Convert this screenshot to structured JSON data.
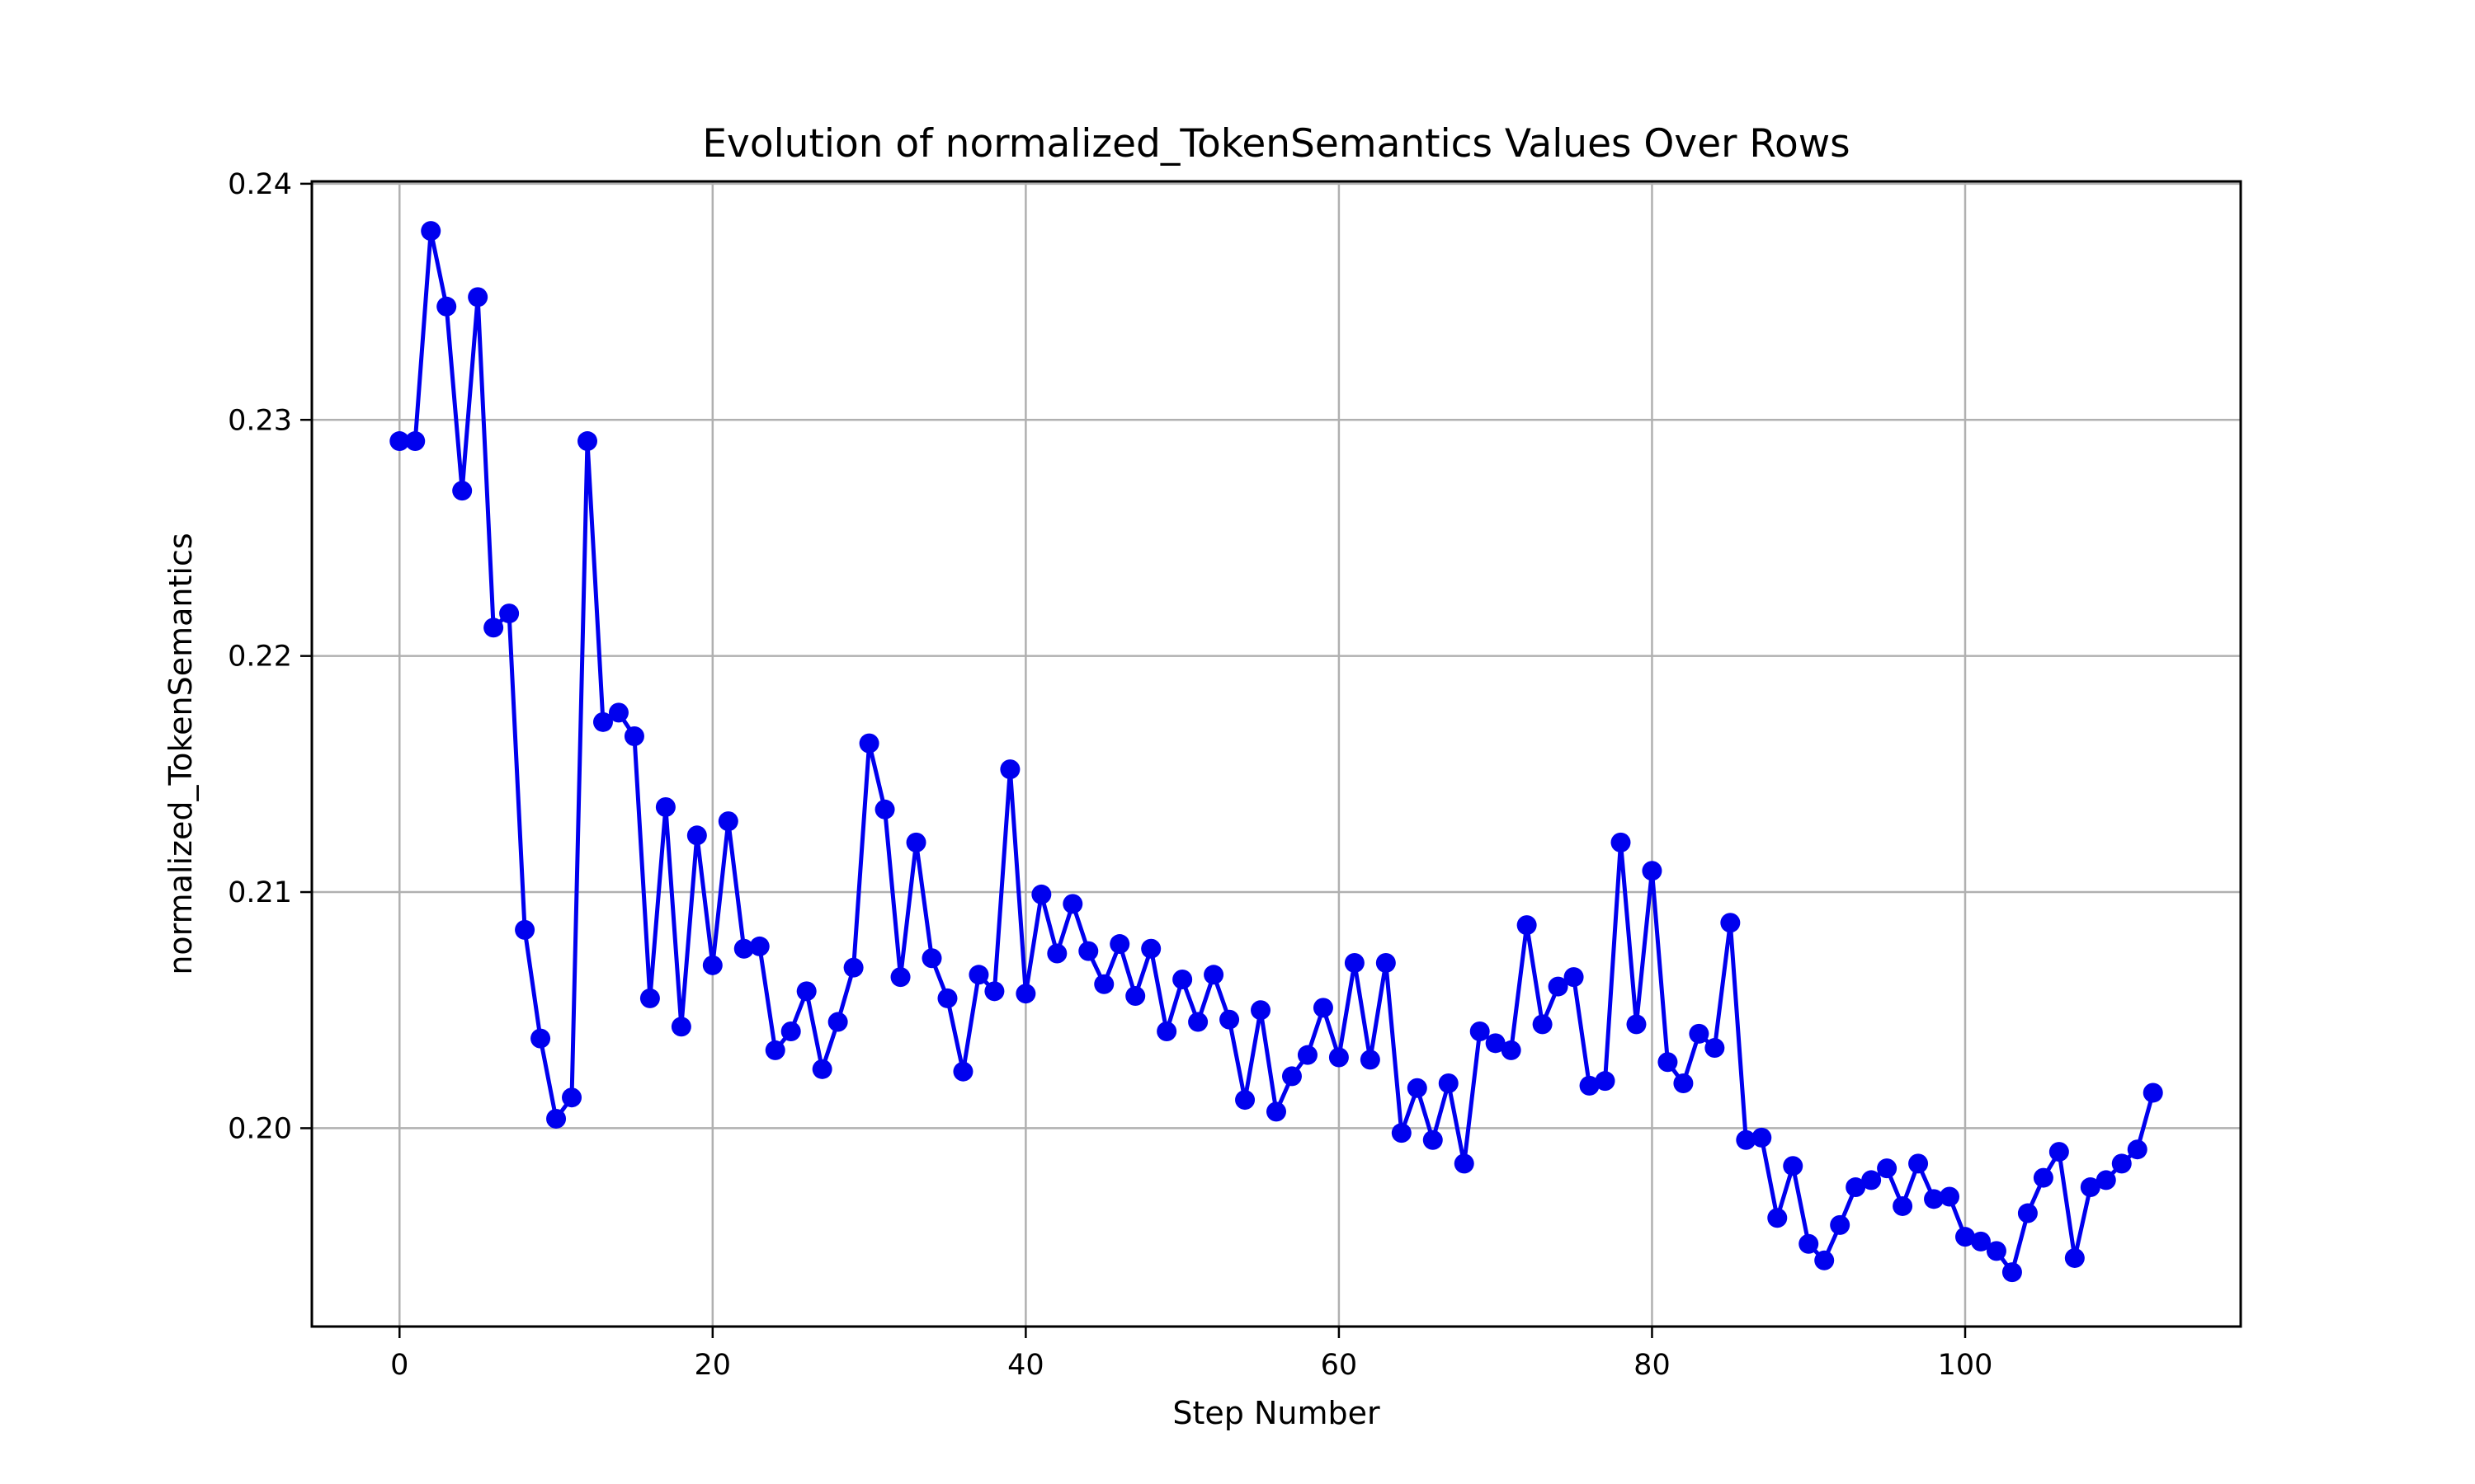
{
  "chart_data": {
    "type": "line",
    "title": "Evolution of normalized_TokenSemantics Values Over Rows",
    "xlabel": "Step Number",
    "ylabel": "normalized_TokenSemantics",
    "xlim": [
      -5.6,
      117.6
    ],
    "ylim": [
      0.1916,
      0.2401
    ],
    "xticks": [
      0,
      20,
      40,
      60,
      80,
      100
    ],
    "xtick_labels": [
      "0",
      "20",
      "40",
      "60",
      "80",
      "100"
    ],
    "yticks": [
      0.2,
      0.21,
      0.22,
      0.23,
      0.24
    ],
    "ytick_labels": [
      "0.20",
      "0.21",
      "0.22",
      "0.23",
      "0.24"
    ],
    "grid": true,
    "legend": "none",
    "series": [
      {
        "color": "#0000ee",
        "marker": "circle",
        "x": [
          0,
          1,
          2,
          3,
          4,
          5,
          6,
          7,
          8,
          9,
          10,
          11,
          12,
          13,
          14,
          15,
          16,
          17,
          18,
          19,
          20,
          21,
          22,
          23,
          24,
          25,
          26,
          27,
          28,
          29,
          30,
          31,
          32,
          33,
          34,
          35,
          36,
          37,
          38,
          39,
          40,
          41,
          42,
          43,
          44,
          45,
          46,
          47,
          48,
          49,
          50,
          51,
          52,
          53,
          54,
          55,
          56,
          57,
          58,
          59,
          60,
          61,
          62,
          63,
          64,
          65,
          66,
          67,
          68,
          69,
          70,
          71,
          72,
          73,
          74,
          75,
          76,
          77,
          78,
          79,
          80,
          81,
          82,
          83,
          84,
          85,
          86,
          87,
          88,
          89,
          90,
          91,
          92,
          93,
          94,
          95,
          96,
          97,
          98,
          99,
          100,
          101,
          102,
          103,
          104,
          105,
          106,
          107,
          108,
          109,
          110,
          111,
          112
        ],
        "values": [
          0.2291,
          0.2291,
          0.238,
          0.2348,
          0.227,
          0.2352,
          0.2212,
          0.2218,
          0.2084,
          0.2038,
          0.2004,
          0.2013,
          0.2291,
          0.2172,
          0.2176,
          0.2166,
          0.2055,
          0.2136,
          0.2043,
          0.2124,
          0.2069,
          0.213,
          0.2076,
          0.2077,
          0.2033,
          0.2041,
          0.2058,
          0.2025,
          0.2045,
          0.2068,
          0.2163,
          0.2135,
          0.2064,
          0.2121,
          0.2072,
          0.2055,
          0.2024,
          0.2065,
          0.2058,
          0.2152,
          0.2057,
          0.2099,
          0.2074,
          0.2095,
          0.2075,
          0.2061,
          0.2078,
          0.2056,
          0.2076,
          0.2041,
          0.2063,
          0.2045,
          0.2065,
          0.2046,
          0.2012,
          0.205,
          0.2007,
          0.2022,
          0.2031,
          0.2051,
          0.203,
          0.207,
          0.2029,
          0.207,
          0.1998,
          0.2017,
          0.1995,
          0.2019,
          0.1985,
          0.2041,
          0.2036,
          0.2033,
          0.2086,
          0.2044,
          0.206,
          0.2064,
          0.2018,
          0.202,
          0.2121,
          0.2044,
          0.2109,
          0.2028,
          0.2019,
          0.204,
          0.2034,
          0.2087,
          0.1995,
          0.1996,
          0.1962,
          0.1984,
          0.1951,
          0.1944,
          0.1959,
          0.1975,
          0.1978,
          0.1983,
          0.1967,
          0.1985,
          0.197,
          0.1971,
          0.1954,
          0.1952,
          0.1948,
          0.1939,
          0.1964,
          0.1979,
          0.199,
          0.1945,
          0.1975,
          0.1978,
          0.1985,
          0.1991,
          0.2015
        ]
      }
    ]
  }
}
